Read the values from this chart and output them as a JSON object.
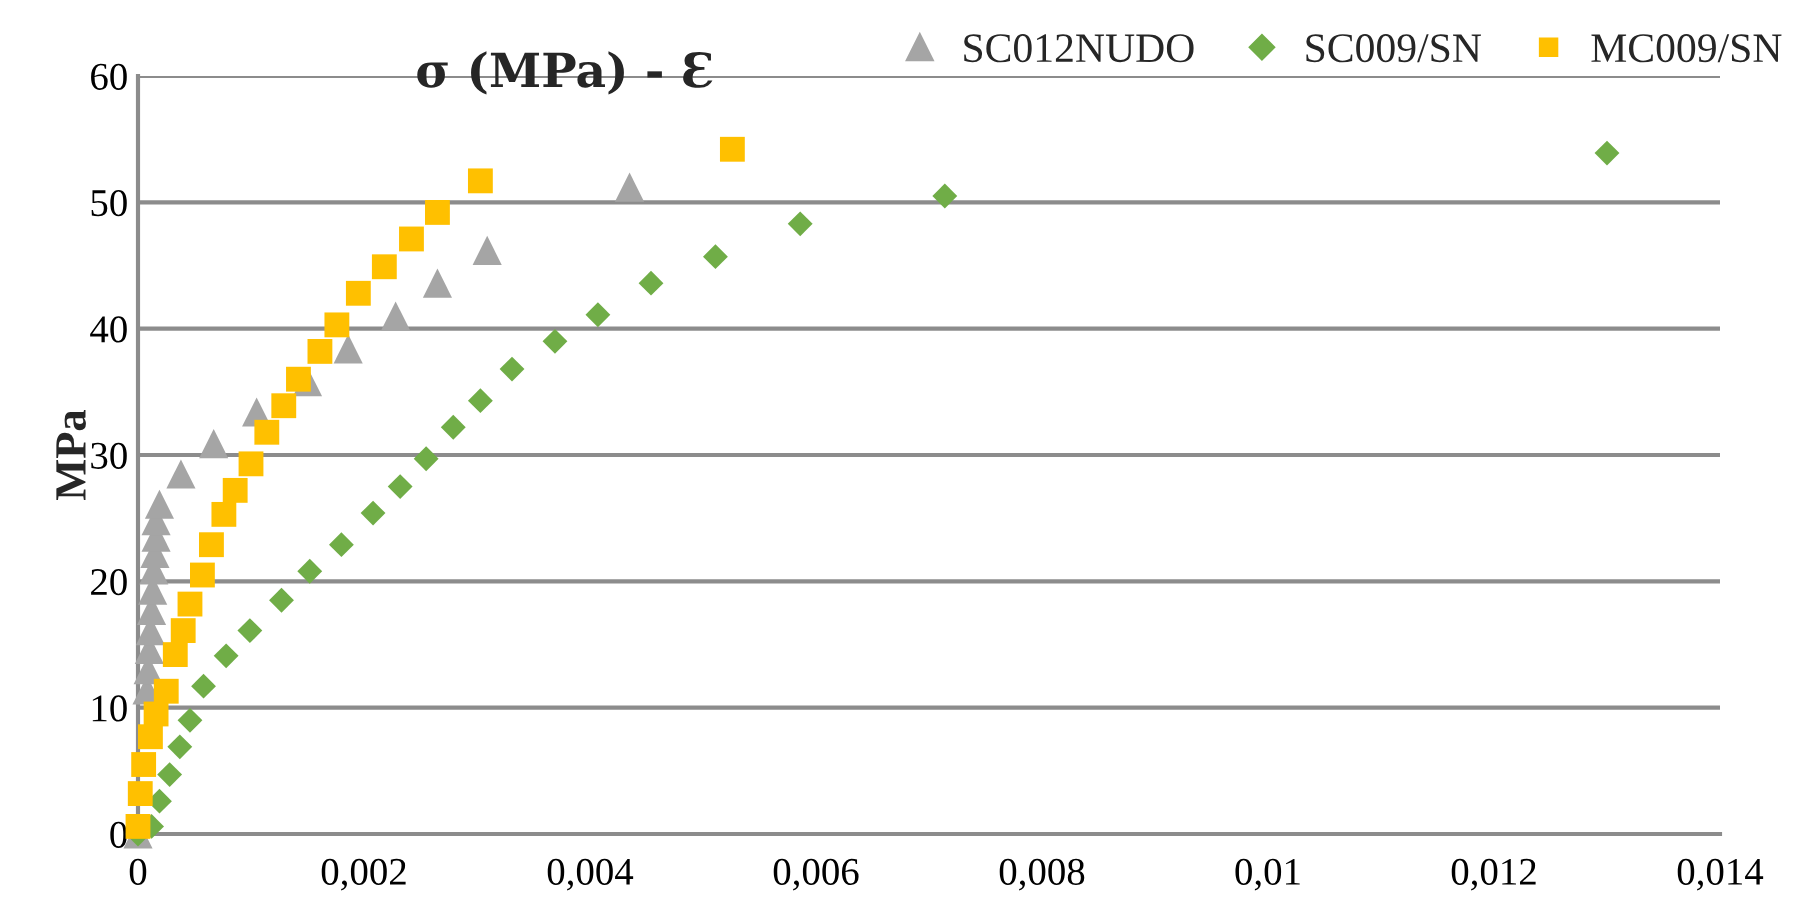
{
  "chart_data": {
    "type": "scatter",
    "title": "σ (MPa) - Ɛ",
    "ylabel": "MPa",
    "xlim": [
      0,
      0.014
    ],
    "xticks": [
      {
        "value": 0,
        "label": "0"
      },
      {
        "value": 0.002,
        "label": "0,002"
      },
      {
        "value": 0.004,
        "label": "0,004"
      },
      {
        "value": 0.006,
        "label": "0,006"
      },
      {
        "value": 0.008,
        "label": "0,008"
      },
      {
        "value": 0.01,
        "label": "0,01"
      },
      {
        "value": 0.012,
        "label": "0,012"
      },
      {
        "value": 0.014,
        "label": "0,014"
      }
    ],
    "ylim": [
      0,
      60
    ],
    "yticks": [
      0,
      10,
      20,
      30,
      40,
      50,
      60
    ],
    "grid": "y",
    "legend": "top right",
    "series": [
      {
        "name": "SC012NUDO",
        "color": "#a5a5a5",
        "marker": "triangle",
        "x": [
          0,
          2e-05,
          4e-05,
          6e-05,
          8e-05,
          9e-05,
          0.0001,
          0.00011,
          0.00012,
          0.00013,
          0.00014,
          0.00015,
          0.00016,
          0.00016,
          0.00019,
          0.00038,
          0.00067,
          0.00105,
          0.0015,
          0.00186,
          0.00228,
          0.00265,
          0.00309,
          0.00435
        ],
        "values": [
          0,
          null,
          null,
          null,
          11.4,
          13.0,
          14.6,
          16.1,
          17.7,
          19.3,
          20.9,
          22.2,
          23.5,
          24.8,
          26.1,
          28.5,
          30.9,
          33.4,
          35.8,
          38.4,
          41.0,
          43.6,
          46.2,
          51.2
        ]
      },
      {
        "name": "SC009/SN",
        "color": "#70ad47",
        "marker": "diamond",
        "x": [
          0,
          0.00012,
          0.00019,
          0.00028,
          0.00037,
          0.00046,
          0.00058,
          0.00078,
          0.00099,
          0.00127,
          0.00152,
          0.0018,
          0.00208,
          0.00232,
          0.00255,
          0.00279,
          0.00303,
          0.00331,
          0.00369,
          0.00407,
          0.00454,
          0.00511,
          0.00586,
          0.00714,
          0.013
        ],
        "values": [
          0,
          0.6,
          2.6,
          4.7,
          6.9,
          9.0,
          11.7,
          14.1,
          16.1,
          18.5,
          20.8,
          22.9,
          25.4,
          27.5,
          29.7,
          32.2,
          34.3,
          36.8,
          39.0,
          41.1,
          43.6,
          45.7,
          48.3,
          50.5,
          53.9
        ]
      },
      {
        "name": "MC009/SN",
        "color": "#ffc000",
        "marker": "square",
        "x": [
          0,
          2e-05,
          5e-05,
          0.00011,
          0.00016,
          0.00025,
          0.00033,
          0.0004,
          0.00046,
          0.00057,
          0.00065,
          0.00076,
          0.00086,
          0.001,
          0.00114,
          0.00129,
          0.00142,
          0.00161,
          0.00176,
          0.00195,
          0.00218,
          0.00242,
          0.00265,
          0.00303,
          0.00526
        ],
        "values": [
          0.6,
          3.2,
          5.5,
          7.7,
          9.5,
          11.3,
          14.2,
          16.1,
          18.2,
          20.5,
          22.9,
          25.3,
          27.2,
          29.3,
          31.8,
          33.9,
          36.0,
          38.2,
          40.3,
          42.8,
          44.9,
          47.1,
          49.2,
          51.7,
          54.2
        ]
      }
    ]
  }
}
